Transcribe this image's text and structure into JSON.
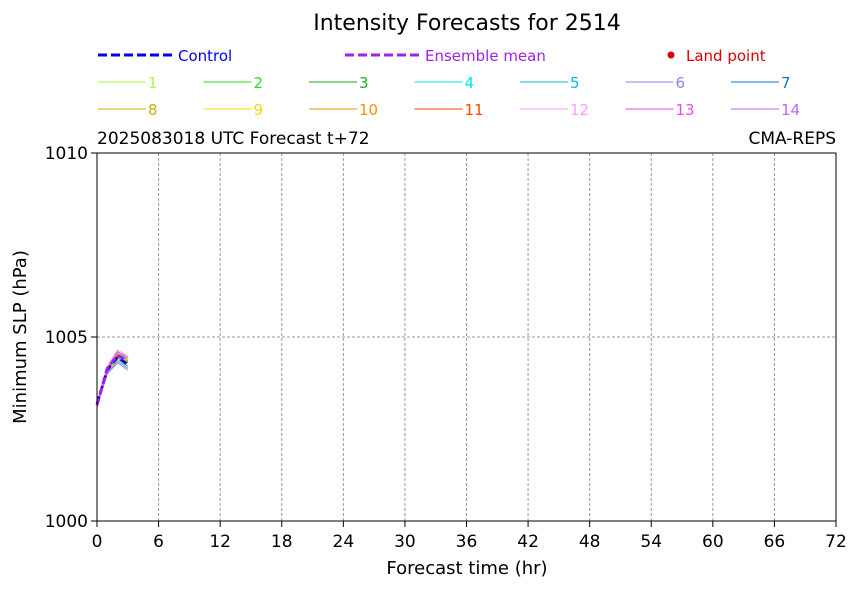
{
  "chart_data": {
    "type": "line",
    "title": "Intensity Forecasts for 2514",
    "subtitle_left": "2025083018 UTC Forecast t+72",
    "subtitle_right": "CMA-REPS",
    "xlabel": "Forecast time (hr)",
    "ylabel": "Minimum SLP (hPa)",
    "xlim": [
      0,
      72
    ],
    "ylim": [
      1000,
      1010
    ],
    "xticks": [
      0,
      6,
      12,
      18,
      24,
      30,
      36,
      42,
      48,
      54,
      60,
      66,
      72
    ],
    "yticks": [
      1000,
      1005,
      1010
    ],
    "grid": true,
    "legend_placement": "top",
    "legend": {
      "control": {
        "label": "Control",
        "color": "#0000ee"
      },
      "ensemble_mean": {
        "label": "Ensemble mean",
        "color": "#a020f0"
      },
      "land_point": {
        "label": "Land point",
        "color": "#dd0000"
      }
    },
    "x": [
      0,
      1,
      2,
      3
    ],
    "control": {
      "name": "Control",
      "color": "#0000ee",
      "values": [
        1003.2,
        1004.1,
        1004.45,
        1004.25
      ]
    },
    "ensemble_mean": {
      "name": "Ensemble mean",
      "color": "#a020f0",
      "values": [
        1003.15,
        1004.15,
        1004.5,
        1004.35
      ]
    },
    "members": [
      {
        "name": "1",
        "color": "#adff2f",
        "values": [
          1003.2,
          1004.1,
          1004.5,
          1004.3
        ]
      },
      {
        "name": "2",
        "color": "#22dd22",
        "values": [
          1003.2,
          1004.15,
          1004.55,
          1004.35
        ]
      },
      {
        "name": "3",
        "color": "#22aa22",
        "values": [
          1003.15,
          1004.05,
          1004.4,
          1004.2
        ]
      },
      {
        "name": "4",
        "color": "#00e5ee",
        "values": [
          1003.2,
          1004.2,
          1004.6,
          1004.4
        ]
      },
      {
        "name": "5",
        "color": "#00bcd4",
        "values": [
          1003.1,
          1004.0,
          1004.35,
          1004.15
        ]
      },
      {
        "name": "6",
        "color": "#8888ee",
        "values": [
          1003.2,
          1004.1,
          1004.45,
          1004.2
        ]
      },
      {
        "name": "7",
        "color": "#1177cc",
        "values": [
          1003.15,
          1004.1,
          1004.5,
          1004.3
        ]
      },
      {
        "name": "8",
        "color": "#c8b400",
        "values": [
          1003.2,
          1004.15,
          1004.55,
          1004.4
        ]
      },
      {
        "name": "9",
        "color": "#ffd700",
        "values": [
          1003.1,
          1004.05,
          1004.4,
          1004.25
        ]
      },
      {
        "name": "10",
        "color": "#ff8c00",
        "values": [
          1003.2,
          1004.2,
          1004.6,
          1004.45
        ]
      },
      {
        "name": "11",
        "color": "#ff4500",
        "values": [
          1003.15,
          1004.1,
          1004.5,
          1004.3
        ]
      },
      {
        "name": "12",
        "color": "#ff9eff",
        "values": [
          1003.2,
          1004.2,
          1004.65,
          1004.5
        ]
      },
      {
        "name": "13",
        "color": "#ee44ee",
        "values": [
          1003.2,
          1004.15,
          1004.6,
          1004.45
        ]
      },
      {
        "name": "14",
        "color": "#bb66ff",
        "values": [
          1003.1,
          1004.0,
          1004.3,
          1004.1
        ]
      }
    ]
  }
}
